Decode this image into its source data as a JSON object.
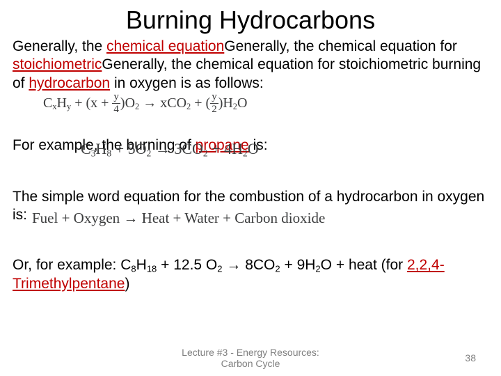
{
  "title": "Burning Hydrocarbons",
  "links": {
    "chemical_equation": "chemical equation",
    "stoichiometric": "stoichiometric",
    "hydrocarbon": "hydrocarbon",
    "propane": "propane",
    "trimethylpentane": "2,2,4-Trimethylpentane"
  },
  "text": {
    "p1_a": "Generally, the ",
    "p1_b": "Generally, the chemical equation for ",
    "p1_c": "Generally, the chemical equation for stoichiometric burning of ",
    "p1_d": " in oxygen is as follows:",
    "p2_a": "For example, the burning of ",
    "p2_b": " is:",
    "p3": "The simple word equation for the combustion of a hydrocarbon in oxygen is:",
    "p4_a": "Or, for example:   C",
    "p4_b": "H",
    "p4_c": " + 12.5 O",
    "p4_d": " → 8CO",
    "p4_e": " + 9H",
    "p4_f": "O + heat (for ",
    "p4_g": ")"
  },
  "sub": {
    "c8": "8",
    "h18": "18",
    "o2": "2",
    "co2": "2",
    "h2": "2"
  },
  "eq": {
    "general": {
      "t1": "C",
      "sx": "x",
      "t2": "H",
      "sy": "y",
      "t3": " + (x + ",
      "fy1": "y",
      "fy1d": "4",
      "t4": ")O",
      "so2": "2",
      "t5": "  →   xCO",
      "sco2": "2",
      "t6": " + (",
      "fy2": "y",
      "fy2d": "2",
      "t7": ")H",
      "sh2": "2",
      "t8": "O"
    },
    "propane": {
      "t1": "C",
      "s3": "3",
      "t2": "H",
      "s8": "8",
      "t3": " + 5O",
      "so2": "2",
      "t4": "  →   3CO",
      "sco2": "2",
      "t5": " + 4H",
      "sh2": "2",
      "t6": "O"
    },
    "word": "Fuel + Oxygen  →   Heat + Water + Carbon dioxide"
  },
  "footer": {
    "line1": "Lecture #3 - Energy Resources:",
    "line2": "Carbon Cycle"
  },
  "pagenum": "38",
  "colors": {
    "link": "#c00000",
    "eq": "#3b3c3d",
    "footer": "#7f7f7f",
    "bg": "#ffffff",
    "text": "#000000"
  }
}
